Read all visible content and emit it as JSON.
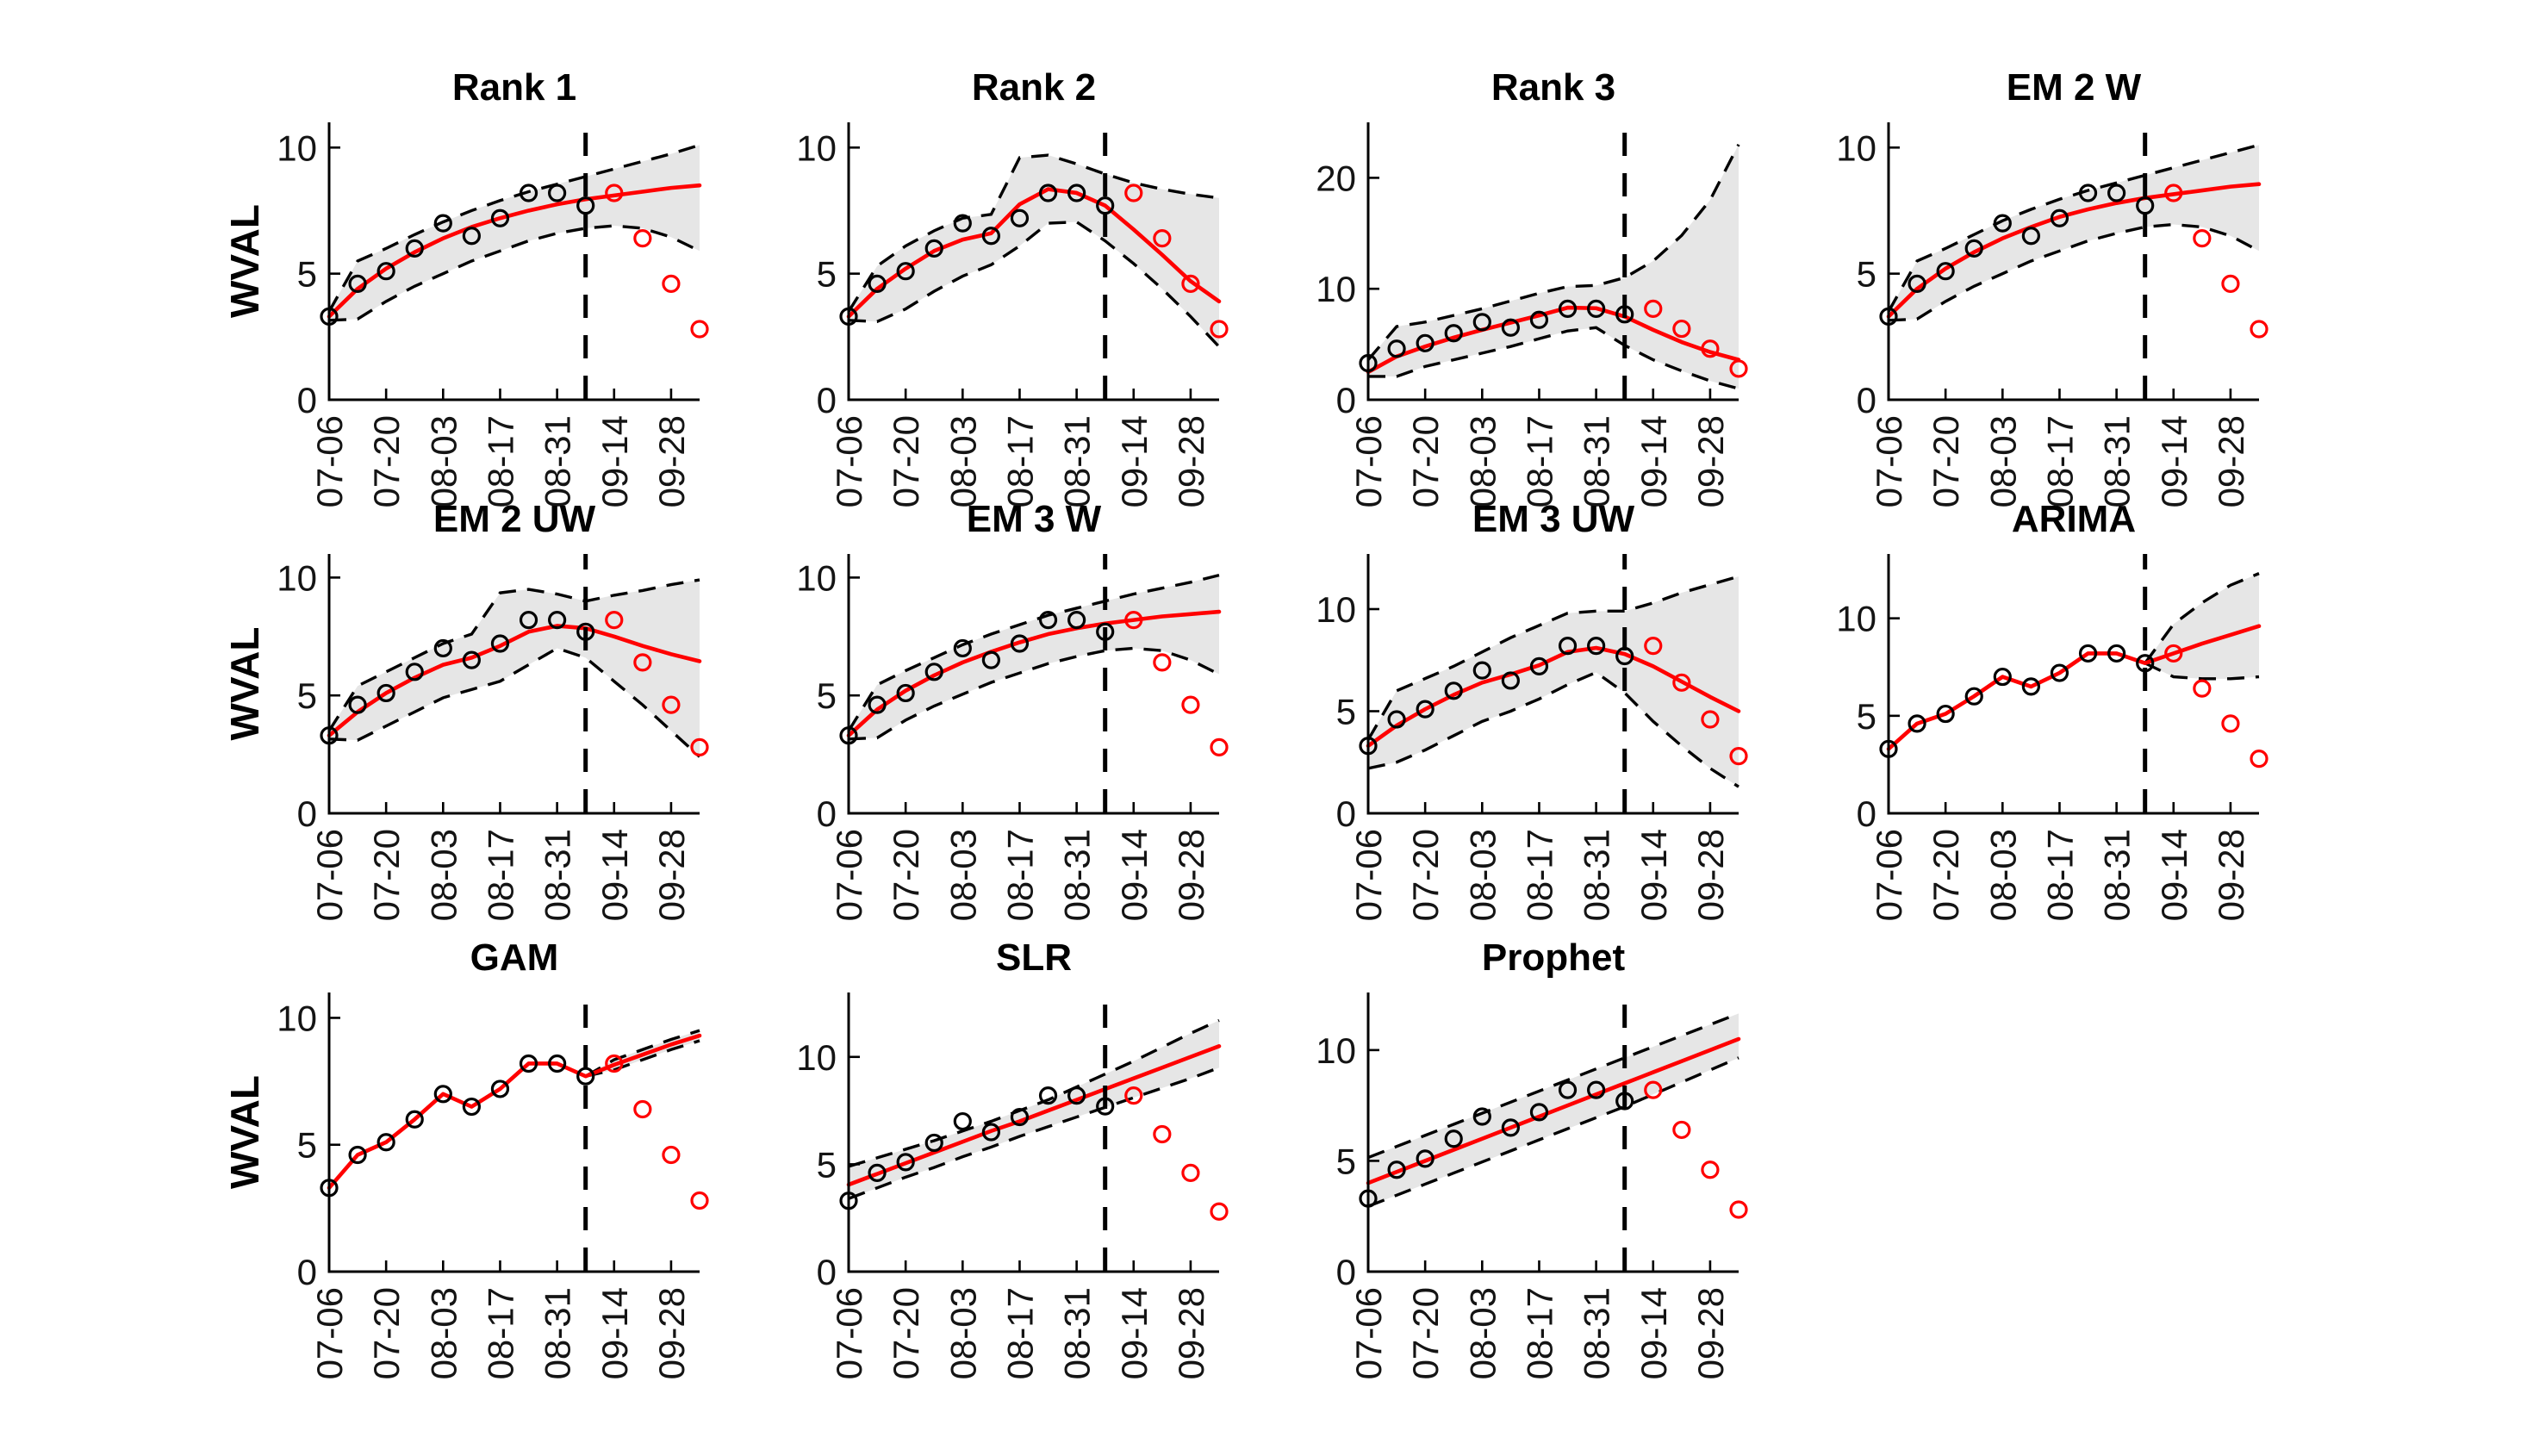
{
  "figure": {
    "ylabel": "WVAL",
    "x_tick_labels": [
      "07-06",
      "07-20",
      "08-03",
      "08-17",
      "08-31",
      "09-14",
      "09-28"
    ],
    "colors": {
      "fit_line": "#ff0000",
      "obs_marker": "#000000",
      "test_marker": "#ff0000",
      "band_fill": "#e6e6e6",
      "band_edge": "#000000",
      "cutoff_line": "#000000",
      "axis": "#000000",
      "text": "#141414"
    }
  },
  "chart_data": {
    "type": "line",
    "title": "",
    "xlabel": "",
    "ylabel": "WVAL",
    "x_tick_labels": [
      "07-06",
      "07-20",
      "08-03",
      "08-17",
      "08-31",
      "09-14",
      "09-28"
    ],
    "x_labeled_tick_indices": [
      0,
      2,
      4,
      6,
      8,
      10,
      12
    ],
    "n_weeks": 14,
    "cutoff_index": 9,
    "observed": {
      "x_indices": [
        0,
        1,
        2,
        3,
        4,
        5,
        6,
        7,
        8,
        9
      ],
      "values": [
        3.3,
        4.6,
        5.1,
        6.0,
        7.0,
        6.5,
        7.2,
        8.2,
        8.2,
        7.7
      ]
    },
    "test": {
      "x_indices": [
        10,
        11,
        12,
        13
      ],
      "values": [
        8.2,
        6.4,
        4.6,
        2.8
      ]
    },
    "panels": [
      {
        "title": "Rank 1",
        "row": 0,
        "col": 0,
        "show_ylabel": true,
        "ymax": 11,
        "yticks": [
          0,
          5,
          10
        ],
        "fit": [
          3.3,
          4.4,
          5.2,
          5.85,
          6.4,
          6.85,
          7.2,
          7.5,
          7.75,
          7.95,
          8.1,
          8.25,
          8.4,
          8.5
        ],
        "band_upper": [
          3.5,
          5.5,
          6.0,
          6.55,
          7.05,
          7.5,
          7.9,
          8.25,
          8.55,
          8.85,
          9.15,
          9.45,
          9.75,
          10.1
        ],
        "band_lower": [
          3.15,
          3.2,
          3.9,
          4.5,
          5.0,
          5.5,
          5.9,
          6.3,
          6.6,
          6.8,
          6.9,
          6.8,
          6.45,
          5.9
        ]
      },
      {
        "title": "Rank 2",
        "row": 0,
        "col": 1,
        "show_ylabel": false,
        "ymax": 11,
        "yticks": [
          0,
          5,
          10
        ],
        "fit": [
          3.3,
          4.4,
          5.2,
          5.9,
          6.35,
          6.6,
          7.75,
          8.35,
          8.2,
          7.7,
          6.75,
          5.75,
          4.7,
          3.9
        ],
        "band_upper": [
          3.5,
          5.3,
          6.1,
          6.7,
          7.2,
          7.35,
          9.6,
          9.7,
          9.35,
          8.95,
          8.6,
          8.35,
          8.15,
          8.0
        ],
        "band_lower": [
          3.15,
          3.1,
          3.6,
          4.3,
          4.9,
          5.35,
          6.1,
          7.0,
          7.05,
          6.3,
          5.4,
          4.4,
          3.3,
          2.1
        ]
      },
      {
        "title": "Rank 3",
        "row": 0,
        "col": 2,
        "show_ylabel": false,
        "ymax": 25,
        "yticks": [
          0,
          10,
          20
        ],
        "fit": [
          2.5,
          3.9,
          4.8,
          5.6,
          6.3,
          6.95,
          7.6,
          8.3,
          8.25,
          7.5,
          6.3,
          5.2,
          4.3,
          3.6
        ],
        "band_upper": [
          3.6,
          6.6,
          7.0,
          7.6,
          8.2,
          8.9,
          9.6,
          10.2,
          10.3,
          11.0,
          12.5,
          14.8,
          18.0,
          23.0
        ],
        "band_lower": [
          2.1,
          2.1,
          3.0,
          3.6,
          4.2,
          4.8,
          5.5,
          6.2,
          6.5,
          4.9,
          3.6,
          2.6,
          1.7,
          1.0
        ]
      },
      {
        "title": "EM 2 W",
        "row": 0,
        "col": 3,
        "show_ylabel": false,
        "ymax": 11,
        "yticks": [
          0,
          5,
          10
        ],
        "fit": [
          3.3,
          4.4,
          5.2,
          5.85,
          6.4,
          6.85,
          7.25,
          7.55,
          7.8,
          8.0,
          8.15,
          8.3,
          8.45,
          8.55
        ],
        "band_upper": [
          3.5,
          5.5,
          6.0,
          6.55,
          7.1,
          7.55,
          7.95,
          8.3,
          8.6,
          8.9,
          9.2,
          9.5,
          9.8,
          10.1
        ],
        "band_lower": [
          3.15,
          3.2,
          3.9,
          4.5,
          5.0,
          5.5,
          5.9,
          6.3,
          6.6,
          6.85,
          6.95,
          6.85,
          6.5,
          5.9
        ]
      },
      {
        "title": "EM 2 UW",
        "row": 1,
        "col": 0,
        "show_ylabel": true,
        "ymax": 11,
        "yticks": [
          0,
          5,
          10
        ],
        "fit": [
          3.3,
          4.3,
          5.1,
          5.75,
          6.3,
          6.6,
          7.1,
          7.7,
          7.95,
          7.85,
          7.5,
          7.1,
          6.75,
          6.45
        ],
        "band_upper": [
          3.5,
          5.4,
          6.0,
          6.6,
          7.2,
          7.6,
          9.35,
          9.5,
          9.3,
          9.0,
          9.25,
          9.45,
          9.7,
          9.9
        ],
        "band_lower": [
          3.15,
          3.1,
          3.7,
          4.3,
          4.9,
          5.25,
          5.6,
          6.3,
          7.0,
          6.6,
          5.6,
          4.6,
          3.5,
          2.4
        ]
      },
      {
        "title": "EM 3 W",
        "row": 1,
        "col": 1,
        "show_ylabel": false,
        "ymax": 11,
        "yticks": [
          0,
          5,
          10
        ],
        "fit": [
          3.3,
          4.4,
          5.2,
          5.85,
          6.4,
          6.85,
          7.25,
          7.6,
          7.85,
          8.05,
          8.2,
          8.35,
          8.45,
          8.55
        ],
        "band_upper": [
          3.5,
          5.45,
          6.05,
          6.6,
          7.15,
          7.6,
          8.0,
          8.4,
          8.7,
          9.0,
          9.3,
          9.55,
          9.8,
          10.1
        ],
        "band_lower": [
          3.15,
          3.2,
          3.95,
          4.55,
          5.05,
          5.55,
          5.95,
          6.35,
          6.65,
          6.9,
          7.0,
          6.9,
          6.5,
          5.9
        ]
      },
      {
        "title": "EM 3 UW",
        "row": 1,
        "col": 2,
        "show_ylabel": false,
        "ymax": 12.7,
        "yticks": [
          0,
          5,
          10
        ],
        "fit": [
          3.3,
          4.3,
          5.1,
          5.8,
          6.4,
          6.8,
          7.25,
          7.9,
          8.1,
          7.8,
          7.2,
          6.45,
          5.7,
          5.0
        ],
        "band_upper": [
          3.6,
          6.0,
          6.6,
          7.2,
          7.9,
          8.6,
          9.2,
          9.8,
          9.9,
          9.9,
          10.3,
          10.8,
          11.2,
          11.6
        ],
        "band_lower": [
          2.2,
          2.5,
          3.1,
          3.8,
          4.5,
          5.0,
          5.6,
          6.3,
          6.9,
          5.9,
          4.5,
          3.3,
          2.2,
          1.3
        ]
      },
      {
        "title": "ARIMA",
        "row": 1,
        "col": 3,
        "show_ylabel": false,
        "ymax": 13.3,
        "yticks": [
          0,
          5,
          10
        ],
        "fit": [
          3.3,
          4.6,
          5.1,
          6.0,
          7.0,
          6.5,
          7.2,
          8.2,
          8.2,
          7.7,
          8.2,
          8.7,
          9.15,
          9.6
        ],
        "band_upper": [
          null,
          null,
          null,
          null,
          null,
          null,
          null,
          null,
          null,
          7.7,
          9.7,
          10.8,
          11.7,
          12.3
        ],
        "band_lower": [
          null,
          null,
          null,
          null,
          null,
          null,
          null,
          null,
          null,
          7.7,
          7.0,
          6.9,
          6.9,
          7.0
        ]
      },
      {
        "title": "GAM",
        "row": 2,
        "col": 0,
        "show_ylabel": true,
        "ymax": 11,
        "yticks": [
          0,
          5,
          10
        ],
        "fit": [
          3.3,
          4.6,
          5.1,
          6.0,
          7.0,
          6.5,
          7.2,
          8.2,
          8.2,
          7.7,
          8.15,
          8.55,
          8.95,
          9.3
        ],
        "band_upper": [
          null,
          null,
          null,
          null,
          null,
          null,
          null,
          null,
          null,
          7.7,
          8.35,
          8.75,
          9.15,
          9.5
        ],
        "band_lower": [
          null,
          null,
          null,
          null,
          null,
          null,
          null,
          null,
          null,
          7.7,
          7.95,
          8.35,
          8.75,
          9.1
        ]
      },
      {
        "title": "SLR",
        "row": 2,
        "col": 1,
        "show_ylabel": false,
        "ymax": 13,
        "yticks": [
          0,
          5,
          10
        ],
        "fit": [
          4.05,
          4.55,
          5.05,
          5.55,
          6.05,
          6.55,
          7.0,
          7.5,
          8.0,
          8.5,
          9.0,
          9.5,
          10.0,
          10.5
        ],
        "band_upper": [
          4.9,
          5.3,
          5.7,
          6.1,
          6.55,
          7.0,
          7.5,
          8.0,
          8.6,
          9.2,
          9.8,
          10.45,
          11.1,
          11.7
        ],
        "band_lower": [
          3.4,
          3.9,
          4.4,
          4.85,
          5.35,
          5.8,
          6.3,
          6.75,
          7.2,
          7.65,
          8.1,
          8.55,
          9.0,
          9.5
        ]
      },
      {
        "title": "Prophet",
        "row": 2,
        "col": 2,
        "show_ylabel": false,
        "ymax": 12.6,
        "yticks": [
          0,
          5,
          10
        ],
        "fit": [
          4.0,
          4.5,
          5.0,
          5.5,
          6.0,
          6.5,
          7.0,
          7.5,
          8.0,
          8.5,
          9.0,
          9.5,
          10.0,
          10.5
        ],
        "band_upper": [
          5.15,
          5.65,
          6.15,
          6.65,
          7.15,
          7.65,
          8.15,
          8.65,
          9.15,
          9.65,
          10.15,
          10.65,
          11.15,
          11.65
        ],
        "band_lower": [
          2.95,
          3.45,
          3.95,
          4.45,
          4.95,
          5.45,
          5.95,
          6.45,
          6.95,
          7.45,
          8.0,
          8.55,
          9.1,
          9.65
        ]
      }
    ]
  }
}
